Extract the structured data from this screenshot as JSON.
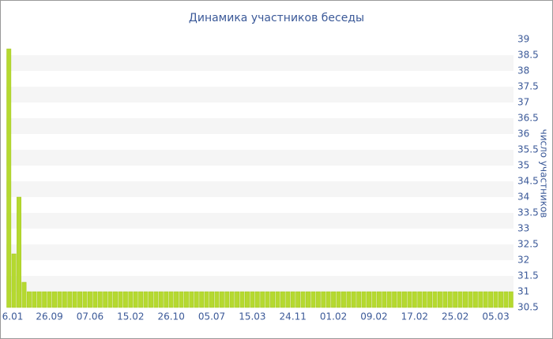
{
  "chart_data": {
    "type": "bar",
    "title": "Динамика участников беседы",
    "y_label": "число участников",
    "categories": [
      "6.01",
      null,
      null,
      null,
      null,
      null,
      null,
      null,
      "26.09",
      null,
      null,
      null,
      null,
      null,
      null,
      null,
      "07.06",
      null,
      null,
      null,
      null,
      null,
      null,
      null,
      "15.02",
      null,
      null,
      null,
      null,
      null,
      null,
      null,
      "26.10",
      null,
      null,
      null,
      null,
      null,
      null,
      null,
      "05.07",
      null,
      null,
      null,
      null,
      null,
      null,
      null,
      "15.03",
      null,
      null,
      null,
      null,
      null,
      null,
      null,
      "24.11",
      null,
      null,
      null,
      null,
      null,
      null,
      null,
      "01.02",
      null,
      null,
      null,
      null,
      null,
      null,
      null,
      "09.02",
      null,
      null,
      null,
      null,
      null,
      null,
      null,
      "17.02",
      null,
      null,
      null,
      null,
      null,
      null,
      null,
      "25.02",
      null,
      null,
      null,
      null,
      null,
      null,
      null,
      "05.03",
      null,
      null,
      null
    ],
    "values": [
      38.7,
      32.2,
      34,
      31.3,
      31,
      31,
      31,
      31,
      31,
      31,
      31,
      31,
      31,
      31,
      31,
      31,
      31,
      31,
      31,
      31,
      31,
      31,
      31,
      31,
      31,
      31,
      31,
      31,
      31,
      31,
      31,
      31,
      31,
      31,
      31,
      31,
      31,
      31,
      31,
      31,
      31,
      31,
      31,
      31,
      31,
      31,
      31,
      31,
      31,
      31,
      31,
      31,
      31,
      31,
      31,
      31,
      31,
      31,
      31,
      31,
      31,
      31,
      31,
      31,
      31,
      31,
      31,
      31,
      31,
      31,
      31,
      31,
      31,
      31,
      31,
      31,
      31,
      31,
      31,
      31,
      31,
      31,
      31,
      31,
      31,
      31,
      31,
      31,
      31,
      31,
      31,
      31,
      31,
      31,
      31,
      31,
      31,
      31,
      31,
      31
    ],
    "color": "#b5d930",
    "ylim": [
      30.5,
      39
    ],
    "yticks": [
      30.5,
      31,
      31.5,
      32,
      32.5,
      33,
      33.5,
      34,
      34.5,
      35,
      35.5,
      36,
      36.5,
      37,
      37.5,
      38,
      38.5,
      39
    ],
    "y_axis_side": "right",
    "grid_bands": true
  }
}
